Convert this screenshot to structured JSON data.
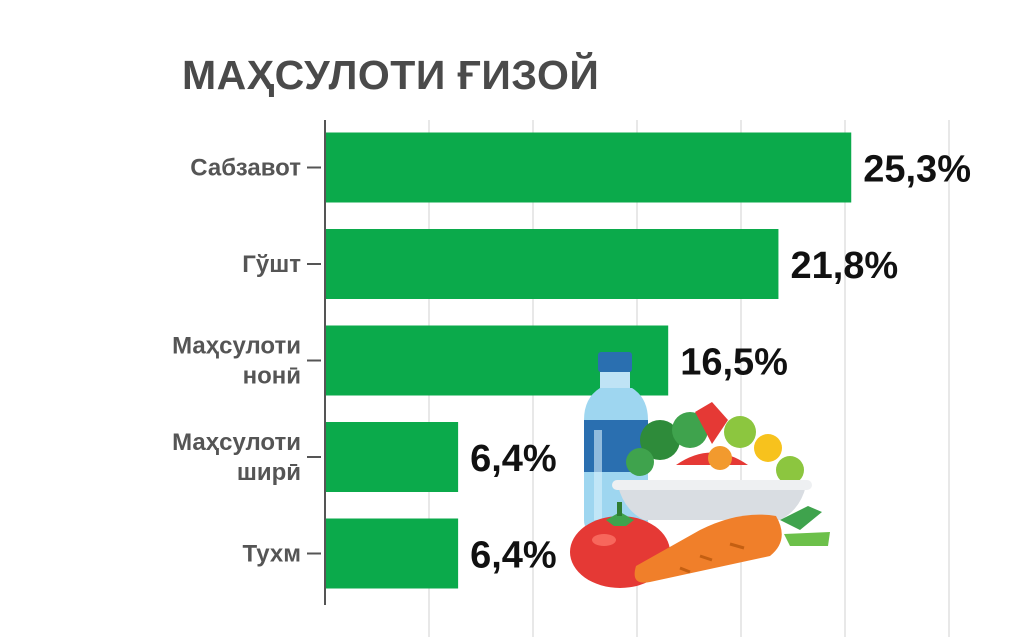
{
  "colors": {
    "bar": "#0BAA4B",
    "grid": "#d0d0d0",
    "axis": "#555555",
    "title": "#4a4a4a"
  },
  "icons": [
    "water-bottle-icon",
    "salad-bowl-icon",
    "tomato-icon",
    "carrot-icon"
  ],
  "chart_data": {
    "type": "bar",
    "orientation": "horizontal",
    "title": "МАҲСУЛОТИ ҒИЗОЙ",
    "categories": [
      [
        "Сабзавот"
      ],
      [
        "Гўшт"
      ],
      [
        "Маҳсулоти",
        "нонӣ"
      ],
      [
        "Маҳсулоти",
        "ширӣ"
      ],
      [
        "Тухм"
      ]
    ],
    "values": [
      25.3,
      21.8,
      16.5,
      6.4,
      6.4
    ],
    "value_labels": [
      "25,3%",
      "21,8%",
      "16,5%",
      "6,4%",
      "6,4%"
    ],
    "xlim": [
      0,
      30
    ],
    "grid": true,
    "legend": "none"
  }
}
